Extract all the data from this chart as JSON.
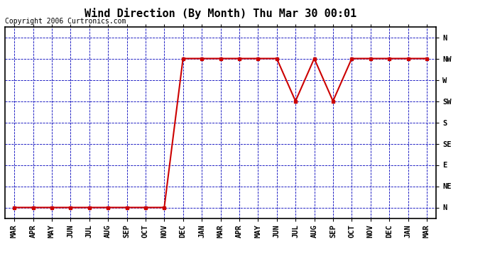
{
  "title": "Wind Direction (By Month) Thu Mar 30 00:01",
  "copyright": "Copyright 2006 Curtronics.com",
  "x_labels": [
    "MAR",
    "APR",
    "MAY",
    "JUN",
    "JUL",
    "AUG",
    "SEP",
    "OCT",
    "NOV",
    "DEC",
    "JAN",
    "MAR",
    "APR",
    "MAY",
    "JUN",
    "JUL",
    "AUG",
    "SEP",
    "OCT",
    "NOV",
    "DEC",
    "JAN",
    "MAR"
  ],
  "y_labels": [
    "N",
    "NE",
    "E",
    "SE",
    "S",
    "SW",
    "W",
    "NW",
    "N"
  ],
  "y_values": [
    0,
    1,
    2,
    3,
    4,
    5,
    6,
    7,
    8
  ],
  "data_x": [
    0,
    1,
    2,
    3,
    4,
    5,
    6,
    7,
    8,
    9,
    10,
    11,
    12,
    13,
    14,
    15,
    16,
    17,
    18,
    19,
    20,
    21,
    22
  ],
  "data_y": [
    0,
    0,
    0,
    0,
    0,
    0,
    0,
    0,
    0,
    7,
    7,
    7,
    7,
    7,
    7,
    5,
    7,
    5,
    7,
    7,
    7,
    7,
    7
  ],
  "line_color": "#cc0000",
  "grid_color": "#0000bb",
  "bg_color": "#ffffff",
  "border_color": "#000000",
  "title_fontsize": 11,
  "label_fontsize": 7.5,
  "copyright_fontsize": 7
}
